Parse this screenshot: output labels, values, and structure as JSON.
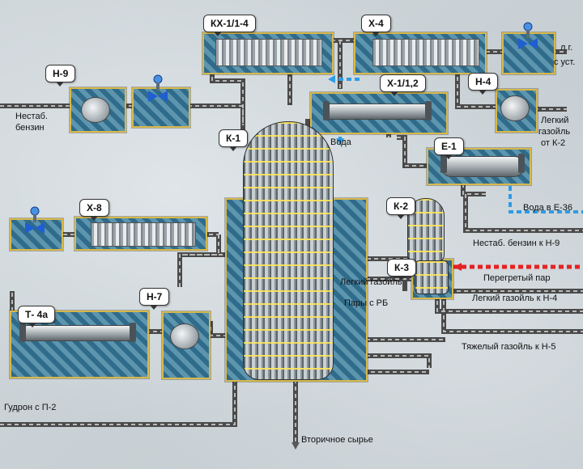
{
  "equipment_tags": {
    "kx": "КХ-1/1-4",
    "x4": "Х-4",
    "h9": "Н-9",
    "x1": "Х-1/1,2",
    "h4": "Н-4",
    "k1": "К-1",
    "e1": "Е-1",
    "x8": "Х-8",
    "k2": "К-2",
    "k3": "К-3",
    "h7": "Н-7",
    "t4a": "Т- 4а"
  },
  "stream_labels": {
    "nestab_benzin_in_1": "Нестаб.",
    "nestab_benzin_in_2": "бензин",
    "lg_1": "л.г.",
    "lg_2": "с уст.",
    "light_gasoil_k2_1": "Легкий",
    "light_gasoil_k2_2": "газойль",
    "light_gasoil_k2_3": "от К-2",
    "water": "Вода",
    "water_to_e36": "Вода в Е-36",
    "nestab_benzin_to_h9": "Нестаб. бензин к Н-9",
    "superheated_steam": "Перегретый пар",
    "light_gasoil": "Легкий газойль",
    "light_gasoil_to_h4": "Легкий газойль к Н-4",
    "vapors_rb": "Пары с РБ",
    "heavy_gasoil_to_h5": "Тяжелый газойль к Н-5",
    "gudron": "Гудрон с П-2",
    "secondary_feed": "Вторичное сырье"
  },
  "colors": {
    "process_line": "#5a5a5a",
    "water_line": "#2e9be6",
    "steam_line": "#e52222",
    "zone_frame": "#d8b84a",
    "zone_fill": "#3f7d9c",
    "valve_blue": "#1f5fd1"
  }
}
